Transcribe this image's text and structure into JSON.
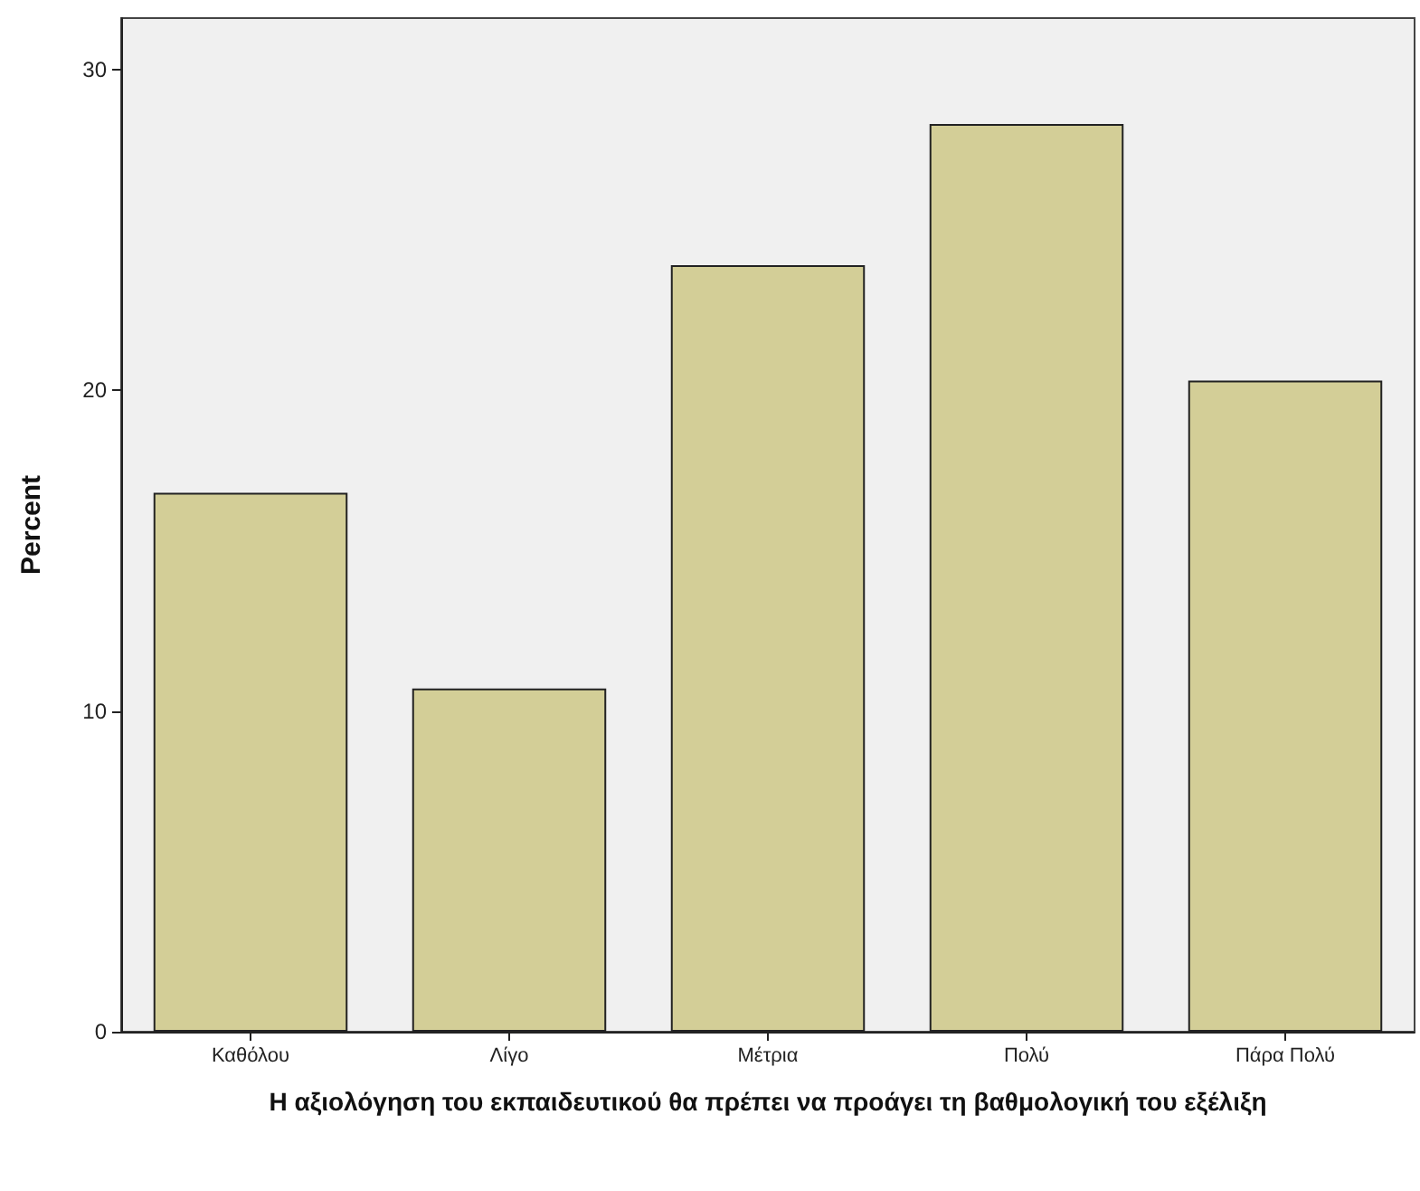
{
  "chart_data": {
    "type": "bar",
    "xlabel": "Η αξιολόγηση του εκπαιδευτικού θα πρέπει να προάγει τη βαθμολογική του εξέλιξη",
    "ylabel": "Percent",
    "categories": [
      "Καθόλου",
      "Λίγο",
      "Μέτρια",
      "Πολύ",
      "Πάρα Πολύ"
    ],
    "values": [
      16.8,
      10.7,
      23.9,
      28.3,
      20.3
    ],
    "color": "#d3ce97",
    "ylim": [
      0,
      31.6
    ],
    "yticks": [
      0,
      10,
      20,
      30
    ],
    "grid": false
  }
}
